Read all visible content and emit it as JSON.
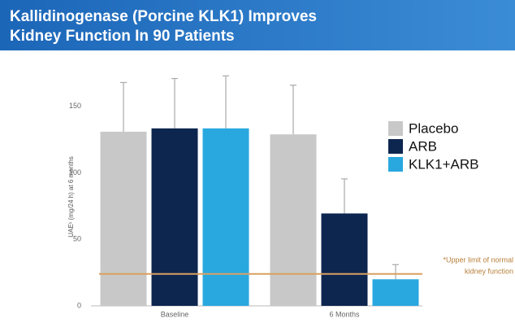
{
  "chart_data": {
    "type": "bar",
    "title": [
      "Kallidinogenase (Porcine KLK1) Improves",
      "Kidney Function In 90 Patients"
    ],
    "y_label": "UAE¹ (mg/24 h) at 6 months",
    "categories": [
      "Baseline",
      "6 Months"
    ],
    "series": [
      {
        "name": "Placebo",
        "color": "#c8c8c8",
        "values": [
          131,
          129
        ],
        "errors": [
          37,
          37
        ]
      },
      {
        "name": "ARB",
        "color": "#0d2650",
        "values": [
          133.5,
          69.5
        ],
        "errors": [
          37.5,
          26
        ]
      },
      {
        "name": "KLK1+ARB",
        "color": "#29a8e0",
        "values": [
          133.5,
          20
        ],
        "errors": [
          39.5,
          11
        ]
      }
    ],
    "reference_line": {
      "value": 24,
      "color": "#d9a060",
      "label": [
        "*Upper limit of normal",
        "kidney function"
      ]
    },
    "ylim": [
      0,
      175
    ],
    "yticks": [
      0,
      50,
      100,
      150
    ],
    "grid": false,
    "legend": "right"
  }
}
